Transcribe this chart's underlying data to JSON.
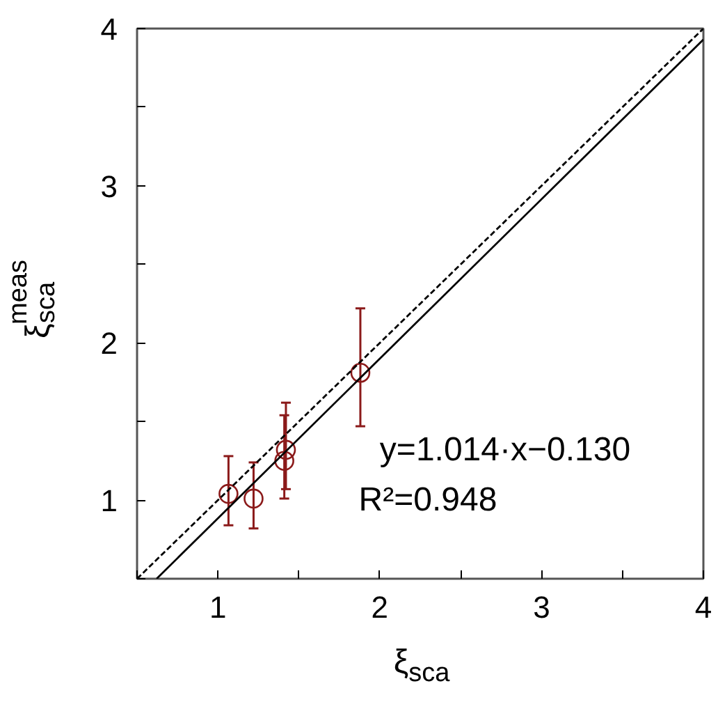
{
  "chart_data": {
    "type": "scatter",
    "xlabel": "ξ$_{sca}$",
    "ylabel": "ξ$_{sca}$$^{meas}$",
    "xlim": [
      0.5,
      4
    ],
    "ylim": [
      0.5,
      4
    ],
    "xticks": [
      {
        "value": 0.5,
        "label": null
      },
      1,
      {
        "value": 1.5,
        "label": null
      },
      2,
      {
        "value": 2.5,
        "label": null
      },
      3,
      {
        "value": 3.5,
        "label": null
      },
      4
    ],
    "yticks": [
      {
        "value": 0.5,
        "label": null
      },
      1,
      {
        "value": 1.5,
        "label": null
      },
      2,
      {
        "value": 2.5,
        "label": null
      },
      3,
      {
        "value": 3.5,
        "label": null
      },
      4
    ],
    "grid": false,
    "annotations": [
      "y=1.014·x−0.130",
      "R²=0.948"
    ],
    "series": [
      {
        "color": "#8b1a1a",
        "marker": "circle",
        "x": [
          1.065,
          1.22,
          1.42,
          1.41,
          1.88
        ],
        "values": [
          1.04,
          1.01,
          1.32,
          1.25,
          1.81
        ],
        "errors": [
          [
            0.84,
            1.28
          ],
          [
            0.82,
            1.24
          ],
          [
            1.07,
            1.62
          ],
          [
            1.01,
            1.54
          ],
          [
            1.47,
            2.22
          ]
        ]
      },
      {
        "type": "line",
        "color": "#000000",
        "line_style": "dashed",
        "x": [
          0.5,
          4
        ],
        "values": [
          0.5,
          4
        ]
      },
      {
        "type": "line",
        "color": "#000000",
        "line_style": "solid",
        "x": [
          0.621,
          4
        ],
        "values": [
          0.5,
          3.93
        ]
      }
    ]
  }
}
